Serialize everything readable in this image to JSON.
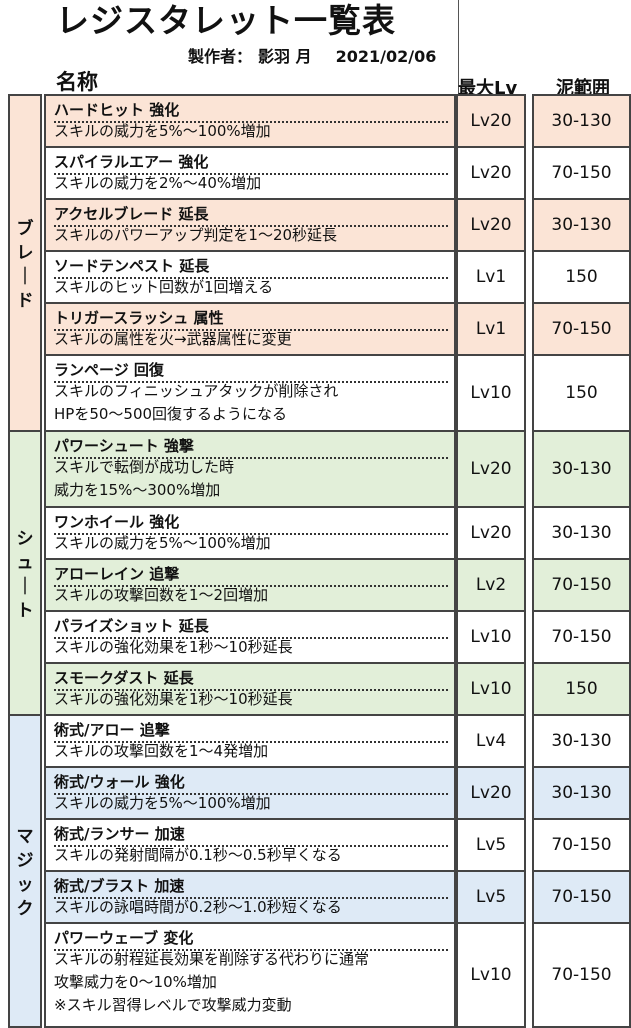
{
  "header": {
    "title": "レジスタレット一覧表",
    "author_label": "製作者：",
    "author_name": "影羽 月",
    "date": "2021/02/06",
    "col_name": "名称",
    "col_max": "最大Lv",
    "col_range": "泥範囲"
  },
  "colors": {
    "blade": "#fbe4d6",
    "shoot": "#e2efd9",
    "magic": "#deeaf6",
    "plain": "#ffffff",
    "border": "#444444"
  },
  "groups": [
    {
      "label_chars": [
        "ブ",
        "レ",
        "｜",
        "ド"
      ],
      "color": "#fbe4d6"
    },
    {
      "label_chars": [
        "シ",
        "ュ",
        "｜",
        "ト"
      ],
      "color": "#e2efd9"
    },
    {
      "label_chars": [
        "マ",
        "ジ",
        "ッ",
        "ク"
      ],
      "color": "#deeaf6"
    }
  ],
  "rows": [
    {
      "name": "ハードヒット 強化",
      "desc": [
        "スキルの威力を5%～100%増加"
      ],
      "max": "Lv20",
      "range": "30-130",
      "color": "#fbe4d6"
    },
    {
      "name": "スパイラルエアー 強化",
      "desc": [
        "スキルの威力を2%～40%増加"
      ],
      "max": "Lv20",
      "range": "70-150",
      "color": "#ffffff"
    },
    {
      "name": "アクセルブレード 延長",
      "desc": [
        "スキルのパワーアップ判定を1～20秒延長"
      ],
      "max": "Lv20",
      "range": "30-130",
      "color": "#fbe4d6"
    },
    {
      "name": "ソードテンペスト 延長",
      "desc": [
        "スキルのヒット回数が1回増える"
      ],
      "max": "Lv1",
      "range": "150",
      "color": "#ffffff"
    },
    {
      "name": "トリガースラッシュ 属性",
      "desc": [
        "スキルの属性を火→武器属性に変更"
      ],
      "max": "Lv1",
      "range": "70-150",
      "color": "#fbe4d6"
    },
    {
      "name": "ランページ 回復",
      "desc": [
        "スキルのフィニッシュアタックが削除され",
        "HPを50～500回復するようになる"
      ],
      "max": "Lv10",
      "range": "150",
      "color": "#ffffff"
    },
    {
      "name": "パワーシュート 強撃",
      "desc": [
        "スキルで転倒が成功した時",
        "威力を15%～300%増加"
      ],
      "max": "Lv20",
      "range": "30-130",
      "color": "#e2efd9"
    },
    {
      "name": "ワンホイール 強化",
      "desc": [
        "スキルの威力を5%～100%増加"
      ],
      "max": "Lv20",
      "range": "30-130",
      "color": "#ffffff"
    },
    {
      "name": "アローレイン 追撃",
      "desc": [
        "スキルの攻撃回数を1～2回増加"
      ],
      "max": "Lv2",
      "range": "70-150",
      "color": "#e2efd9"
    },
    {
      "name": "パライズショット 延長",
      "desc": [
        "スキルの強化効果を1秒～10秒延長"
      ],
      "max": "Lv10",
      "range": "70-150",
      "color": "#ffffff"
    },
    {
      "name": "スモークダスト 延長",
      "desc": [
        "スキルの強化効果を1秒～10秒延長"
      ],
      "max": "Lv10",
      "range": "150",
      "color": "#e2efd9"
    },
    {
      "name": "術式/アロー 追撃",
      "desc": [
        "スキルの攻撃回数を1～4発増加"
      ],
      "max": "Lv4",
      "range": "30-130",
      "color": "#ffffff"
    },
    {
      "name": "術式/ウォール 強化",
      "desc": [
        "スキルの威力を5%～100%増加"
      ],
      "max": "Lv20",
      "range": "30-130",
      "color": "#deeaf6"
    },
    {
      "name": "術式/ランサー 加速",
      "desc": [
        "スキルの発射間隔が0.1秒～0.5秒早くなる"
      ],
      "max": "Lv5",
      "range": "70-150",
      "color": "#ffffff"
    },
    {
      "name": "術式/ブラスト 加速",
      "desc": [
        "スキルの詠唱時間が0.2秒～1.0秒短くなる"
      ],
      "max": "Lv5",
      "range": "70-150",
      "color": "#deeaf6"
    },
    {
      "name": "パワーウェーブ 変化",
      "desc": [
        "スキルの射程延長効果を削除する代わりに通常",
        "攻撃威力を0～10%増加",
        "※スキル習得レベルで攻撃威力変動"
      ],
      "max": "Lv10",
      "range": "70-150",
      "color": "#ffffff"
    }
  ]
}
